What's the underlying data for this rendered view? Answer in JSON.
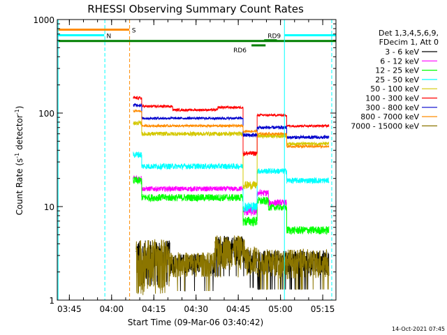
{
  "chart_data": {
    "type": "line",
    "title": "RHESSI Observing Summary Count Rates",
    "xlabel": "Start Time (09-Mar-06 03:40:42)",
    "ylabel": "Count Rate (s⁻¹ detector⁻¹)",
    "ylabel_parts": {
      "base": "Count Rate (s",
      "sup1": "-1",
      "mid": " detector",
      "sup2": "-1",
      "end": ")"
    },
    "y_scale": "log",
    "ylim": [
      1,
      1000
    ],
    "x_range_minutes": [
      0,
      99
    ],
    "x_ticks": [
      {
        "label": "03:45",
        "t": 4.3
      },
      {
        "label": "04:00",
        "t": 19.3
      },
      {
        "label": "04:15",
        "t": 34.3
      },
      {
        "label": "04:30",
        "t": 49.3
      },
      {
        "label": "04:45",
        "t": 64.3
      },
      {
        "label": "05:00",
        "t": 79.3
      },
      {
        "label": "05:15",
        "t": 94.3
      }
    ],
    "y_ticks": [
      {
        "label": "1",
        "v": 1
      },
      {
        "label": "10",
        "v": 10
      },
      {
        "label": "100",
        "v": 100
      },
      {
        "label": "1000",
        "v": 1000
      }
    ],
    "legend_header": [
      "Det 1,3,4,5,6,9,",
      "FDecim 1, Att 0"
    ],
    "legend_placement": "right",
    "series": [
      {
        "name": "3 - 6 keV",
        "color": "#000000",
        "segments": [
          {
            "t0": 28.0,
            "t1": 40.0,
            "v": 2.9,
            "noise": 0.5,
            "drop": 0.04
          },
          {
            "t0": 40.0,
            "t1": 56.0,
            "v": 2.5,
            "noise": 0.25,
            "drop": 0.02
          },
          {
            "t0": 56.0,
            "t1": 66.5,
            "v": 3.6,
            "noise": 0.35,
            "drop": 0.05
          },
          {
            "t0": 66.5,
            "t1": 71.0,
            "v": 2.7,
            "noise": 0.3,
            "drop": 0.03
          },
          {
            "t0": 71.0,
            "t1": 96.5,
            "v": 2.6,
            "noise": 0.3,
            "drop": 0.04
          }
        ]
      },
      {
        "name": "6 - 12 keV",
        "color": "#ff00ff",
        "segments": [
          {
            "t0": 27.0,
            "t1": 30.0,
            "v": 20.0,
            "noise": 0.08
          },
          {
            "t0": 30.0,
            "t1": 66.0,
            "v": 15.5,
            "noise": 0.06
          },
          {
            "t0": 66.0,
            "t1": 71.0,
            "v": 9.0,
            "noise": 0.12
          },
          {
            "t0": 71.0,
            "t1": 75.0,
            "v": 14.0,
            "noise": 0.08
          },
          {
            "t0": 75.0,
            "t1": 81.5,
            "v": 11.0,
            "noise": 0.08
          }
        ]
      },
      {
        "name": "12 - 25 keV",
        "color": "#00ff00",
        "segments": [
          {
            "t0": 27.0,
            "t1": 30.0,
            "v": 19.0,
            "noise": 0.1
          },
          {
            "t0": 30.0,
            "t1": 66.0,
            "v": 12.5,
            "noise": 0.09
          },
          {
            "t0": 66.0,
            "t1": 71.0,
            "v": 7.0,
            "noise": 0.12
          },
          {
            "t0": 71.0,
            "t1": 75.0,
            "v": 11.5,
            "noise": 0.1
          },
          {
            "t0": 75.0,
            "t1": 81.5,
            "v": 9.8,
            "noise": 0.08
          },
          {
            "t0": 81.5,
            "t1": 96.5,
            "v": 5.6,
            "noise": 0.1
          }
        ]
      },
      {
        "name": "25 - 50 keV",
        "color": "#00ffff",
        "segments": [
          {
            "t0": 27.0,
            "t1": 30.0,
            "v": 36.0,
            "noise": 0.08
          },
          {
            "t0": 30.0,
            "t1": 66.0,
            "v": 27.0,
            "noise": 0.07
          },
          {
            "t0": 66.0,
            "t1": 71.0,
            "v": 10.0,
            "noise": 0.12
          },
          {
            "t0": 71.0,
            "t1": 81.5,
            "v": 24.0,
            "noise": 0.07
          },
          {
            "t0": 81.5,
            "t1": 96.5,
            "v": 19.0,
            "noise": 0.07
          }
        ]
      },
      {
        "name": "50 - 100 keV",
        "color": "#d4c800",
        "segments": [
          {
            "t0": 27.0,
            "t1": 30.0,
            "v": 78.0,
            "noise": 0.05
          },
          {
            "t0": 30.0,
            "t1": 66.0,
            "v": 60.0,
            "noise": 0.05
          },
          {
            "t0": 66.0,
            "t1": 71.0,
            "v": 17.0,
            "noise": 0.1
          },
          {
            "t0": 71.0,
            "t1": 81.5,
            "v": 57.0,
            "noise": 0.05
          },
          {
            "t0": 81.5,
            "t1": 96.5,
            "v": 47.0,
            "noise": 0.04
          }
        ]
      },
      {
        "name": "100 - 300 keV",
        "color": "#ff0000",
        "segments": [
          {
            "t0": 27.0,
            "t1": 30.0,
            "v": 145.0,
            "noise": 0.04
          },
          {
            "t0": 30.0,
            "t1": 41.0,
            "v": 118.0,
            "noise": 0.03
          },
          {
            "t0": 41.0,
            "t1": 57.0,
            "v": 108.0,
            "noise": 0.03
          },
          {
            "t0": 57.0,
            "t1": 66.0,
            "v": 115.0,
            "noise": 0.03
          },
          {
            "t0": 66.0,
            "t1": 71.0,
            "v": 37.0,
            "noise": 0.06
          },
          {
            "t0": 71.0,
            "t1": 81.5,
            "v": 95.0,
            "noise": 0.03
          },
          {
            "t0": 81.5,
            "t1": 96.5,
            "v": 73.0,
            "noise": 0.03
          }
        ]
      },
      {
        "name": "300 - 800 keV",
        "color": "#0000cc",
        "segments": [
          {
            "t0": 27.0,
            "t1": 30.0,
            "v": 122.0,
            "noise": 0.04
          },
          {
            "t0": 30.0,
            "t1": 66.0,
            "v": 88.0,
            "noise": 0.03
          },
          {
            "t0": 66.0,
            "t1": 71.0,
            "v": 58.0,
            "noise": 0.05
          },
          {
            "t0": 71.0,
            "t1": 81.5,
            "v": 70.0,
            "noise": 0.04
          },
          {
            "t0": 81.5,
            "t1": 96.5,
            "v": 55.0,
            "noise": 0.04
          }
        ]
      },
      {
        "name": "800 - 7000 keV",
        "color": "#ff8c00",
        "segments": [
          {
            "t0": 27.0,
            "t1": 30.0,
            "v": 105.0,
            "noise": 0.03
          },
          {
            "t0": 30.0,
            "t1": 66.0,
            "v": 73.0,
            "noise": 0.03
          },
          {
            "t0": 66.0,
            "t1": 71.0,
            "v": 64.0,
            "noise": 0.03
          },
          {
            "t0": 71.0,
            "t1": 81.5,
            "v": 60.0,
            "noise": 0.03
          },
          {
            "t0": 81.5,
            "t1": 96.5,
            "v": 44.0,
            "noise": 0.03
          }
        ]
      },
      {
        "name": "7000 - 15000 keV",
        "color": "#8b7500",
        "segments": [
          {
            "t0": 28.0,
            "t1": 40.0,
            "v": 2.8,
            "noise": 0.6,
            "drop": 0.05
          },
          {
            "t0": 40.0,
            "t1": 56.0,
            "v": 2.5,
            "noise": 0.3,
            "drop": 0.02
          },
          {
            "t0": 56.0,
            "t1": 66.5,
            "v": 3.5,
            "noise": 0.4,
            "drop": 0.05
          },
          {
            "t0": 66.5,
            "t1": 71.0,
            "v": 2.8,
            "noise": 0.35,
            "drop": 0.03
          },
          {
            "t0": 71.0,
            "t1": 96.5,
            "v": 2.6,
            "noise": 0.35,
            "drop": 0.04
          }
        ]
      }
    ],
    "flags": [
      {
        "name": "S",
        "color": "#ff8c00",
        "level": 780,
        "t0": 0.2,
        "t1": 25.6,
        "label_t": 26.5
      },
      {
        "name": "N",
        "color": "#00ffff",
        "level": 680,
        "t0": 0.2,
        "t1": 16.7,
        "label_t": 17.5
      },
      {
        "name": "N-post",
        "color": "#00ffff",
        "level": 680,
        "t0": 80.8,
        "t1": 98.9
      },
      {
        "name": "SAA",
        "color": "#007f00",
        "level": 590,
        "t0": 0.2,
        "t1": 98.9
      },
      {
        "name": "RD6",
        "color": "#007f00",
        "level": 530,
        "t0": 69.0,
        "t1": 74.0,
        "label_text": "RD6",
        "label_side": "left"
      },
      {
        "name": "RD9",
        "color": "#007f00",
        "level": 600,
        "t0": 73.5,
        "t1": 78.0,
        "label_text": "RD9",
        "label_side": "above"
      }
    ],
    "vlines": [
      {
        "t": 16.9,
        "color": "#00ffff",
        "style": "dashed"
      },
      {
        "t": 25.7,
        "color": "#ff8c00",
        "style": "dashed"
      },
      {
        "t": 80.7,
        "color": "#00ffff",
        "style": "solid"
      },
      {
        "t": 97.5,
        "color": "#00ffff",
        "style": "dashed"
      },
      {
        "t": 0.3,
        "color": "#00ffff",
        "style": "solid"
      }
    ],
    "footer_date": "14-Oct-2021 07:45"
  }
}
